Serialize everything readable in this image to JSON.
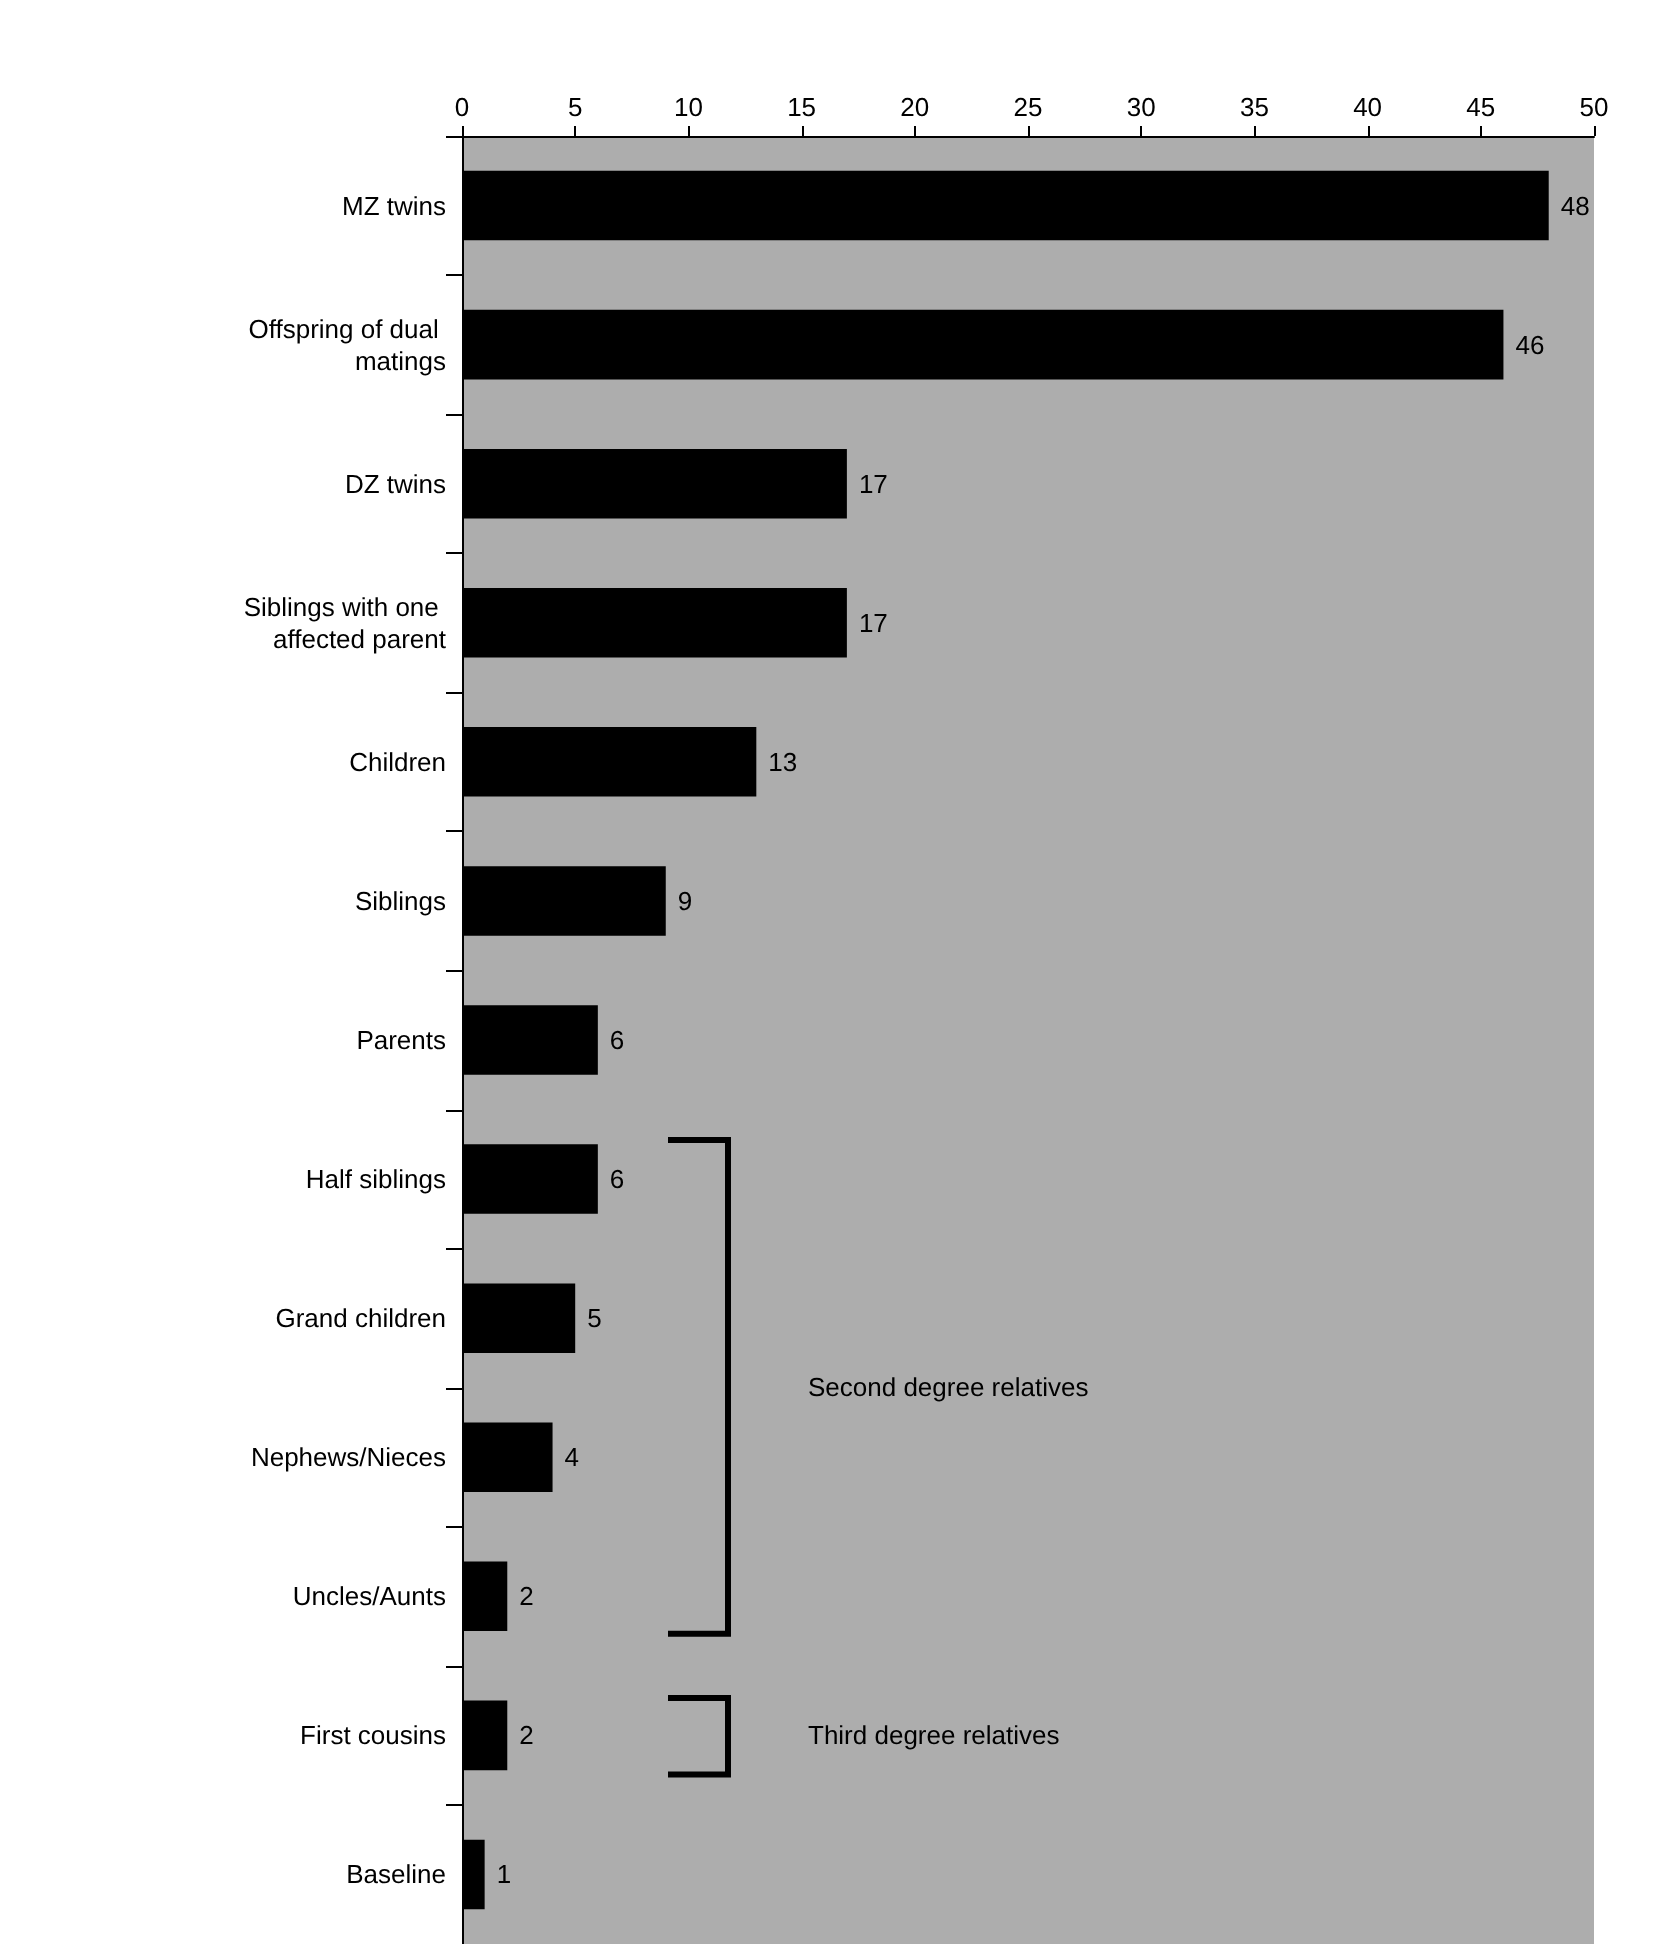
{
  "chart_data": {
    "type": "bar",
    "orientation": "horizontal",
    "categories": [
      "MZ twins",
      "Offspring of dual matings",
      "DZ twins",
      "Siblings with one affected parent",
      "Children",
      "Siblings",
      "Parents",
      "Half siblings",
      "Grand children",
      "Nephews/Nieces",
      "Uncles/Aunts",
      "First cousins",
      "Baseline"
    ],
    "values": [
      48,
      46,
      17,
      17,
      13,
      9,
      6,
      6,
      5,
      4,
      2,
      2,
      1
    ],
    "color": "#000000",
    "data_labels": true,
    "xlim": [
      0,
      50
    ],
    "xticks": [
      0,
      5,
      10,
      15,
      20,
      25,
      30,
      35,
      40,
      45,
      50
    ],
    "grid": false,
    "annotations": [
      "Second degree relatives",
      "Third degree relatives"
    ]
  }
}
